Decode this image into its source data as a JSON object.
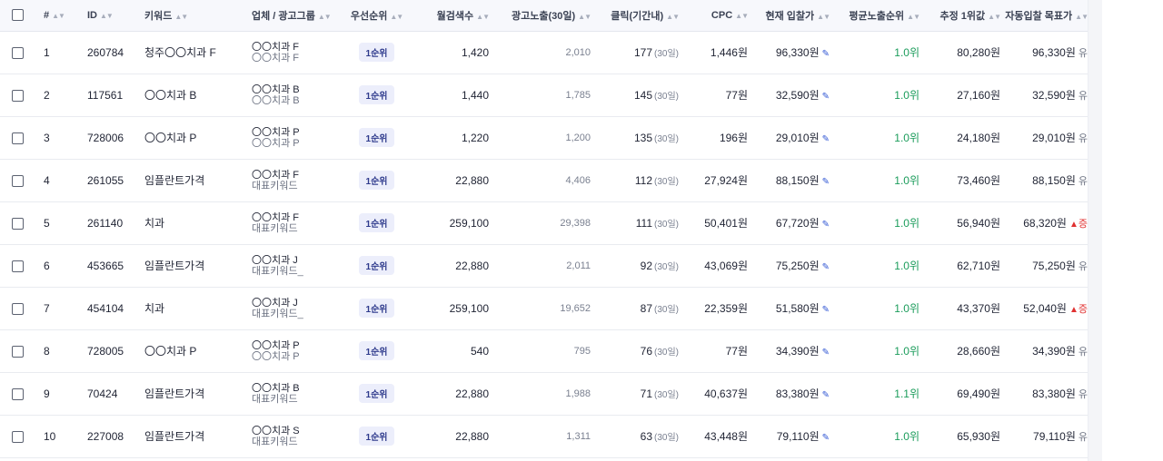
{
  "columns": {
    "num": "#",
    "id": "ID",
    "keyword": "키워드",
    "group": "업체 / 광고그룹",
    "priority": "우선순위",
    "monthly": "월검색수",
    "impressions": "광고노출(30일)",
    "clicks": "클릭(기간내)",
    "cpc": "CPC",
    "current_bid": "현재 입찰가",
    "avg_rank": "평균노출순위",
    "est_first": "추정 1위값",
    "auto_target": "자동입찰 목표가"
  },
  "sort_glyph": "▲▼",
  "clicks_sub": "(30일)",
  "rows": [
    {
      "num": "1",
      "id": "260784",
      "keyword": "청주〇〇치과 F",
      "group1": "〇〇치과 F",
      "group2": "〇〇치과 F",
      "priority": "1순위",
      "monthly": "1,420",
      "impressions": "2,010",
      "clicks": "177",
      "cpc": "1,446원",
      "bid": "96,330원",
      "rank": "1.0위",
      "est": "80,280원",
      "target": "96,330원",
      "arrow": "",
      "tail": "유"
    },
    {
      "num": "2",
      "id": "117561",
      "keyword": "〇〇치과 B",
      "group1": "〇〇치과 B",
      "group2": "〇〇치과 B",
      "priority": "1순위",
      "monthly": "1,440",
      "impressions": "1,785",
      "clicks": "145",
      "cpc": "77원",
      "bid": "32,590원",
      "rank": "1.0위",
      "est": "27,160원",
      "target": "32,590원",
      "arrow": "",
      "tail": "유"
    },
    {
      "num": "3",
      "id": "728006",
      "keyword": "〇〇치과 P",
      "group1": "〇〇치과 P",
      "group2": "〇〇치과 P",
      "priority": "1순위",
      "monthly": "1,220",
      "impressions": "1,200",
      "clicks": "135",
      "cpc": "196원",
      "bid": "29,010원",
      "rank": "1.0위",
      "est": "24,180원",
      "target": "29,010원",
      "arrow": "",
      "tail": "유"
    },
    {
      "num": "4",
      "id": "261055",
      "keyword": "임플란트가격",
      "group1": "〇〇치과 F",
      "group2": "대표키워드",
      "priority": "1순위",
      "monthly": "22,880",
      "impressions": "4,406",
      "clicks": "112",
      "cpc": "27,924원",
      "bid": "88,150원",
      "rank": "1.0위",
      "est": "73,460원",
      "target": "88,150원",
      "arrow": "",
      "tail": "유"
    },
    {
      "num": "5",
      "id": "261140",
      "keyword": "치과",
      "group1": "〇〇치과 F",
      "group2": "대표키워드",
      "priority": "1순위",
      "monthly": "259,100",
      "impressions": "29,398",
      "clicks": "111",
      "cpc": "50,401원",
      "bid": "67,720원",
      "rank": "1.0위",
      "est": "56,940원",
      "target": "68,320원",
      "arrow": "▲",
      "tail": "증"
    },
    {
      "num": "6",
      "id": "453665",
      "keyword": "임플란트가격",
      "group1": "〇〇치과 J",
      "group2": "대표키워드_",
      "priority": "1순위",
      "monthly": "22,880",
      "impressions": "2,011",
      "clicks": "92",
      "cpc": "43,069원",
      "bid": "75,250원",
      "rank": "1.0위",
      "est": "62,710원",
      "target": "75,250원",
      "arrow": "",
      "tail": "유"
    },
    {
      "num": "7",
      "id": "454104",
      "keyword": "치과",
      "group1": "〇〇치과 J",
      "group2": "대표키워드_",
      "priority": "1순위",
      "monthly": "259,100",
      "impressions": "19,652",
      "clicks": "87",
      "cpc": "22,359원",
      "bid": "51,580원",
      "rank": "1.0위",
      "est": "43,370원",
      "target": "52,040원",
      "arrow": "▲",
      "tail": "증"
    },
    {
      "num": "8",
      "id": "728005",
      "keyword": "〇〇치과 P",
      "group1": "〇〇치과 P",
      "group2": "〇〇치과 P",
      "priority": "1순위",
      "monthly": "540",
      "impressions": "795",
      "clicks": "76",
      "cpc": "77원",
      "bid": "34,390원",
      "rank": "1.0위",
      "est": "28,660원",
      "target": "34,390원",
      "arrow": "",
      "tail": "유"
    },
    {
      "num": "9",
      "id": "70424",
      "keyword": "임플란트가격",
      "group1": "〇〇치과 B",
      "group2": "대표키워드",
      "priority": "1순위",
      "monthly": "22,880",
      "impressions": "1,988",
      "clicks": "71",
      "cpc": "40,637원",
      "bid": "83,380원",
      "rank": "1.1위",
      "est": "69,490원",
      "target": "83,380원",
      "arrow": "",
      "tail": "유"
    },
    {
      "num": "10",
      "id": "227008",
      "keyword": "임플란트가격",
      "group1": "〇〇치과 S",
      "group2": "대표키워드",
      "priority": "1순위",
      "monthly": "22,880",
      "impressions": "1,311",
      "clicks": "63",
      "cpc": "43,448원",
      "bid": "79,110원",
      "rank": "1.0위",
      "est": "65,930원",
      "target": "79,110원",
      "arrow": "",
      "tail": "유"
    }
  ]
}
